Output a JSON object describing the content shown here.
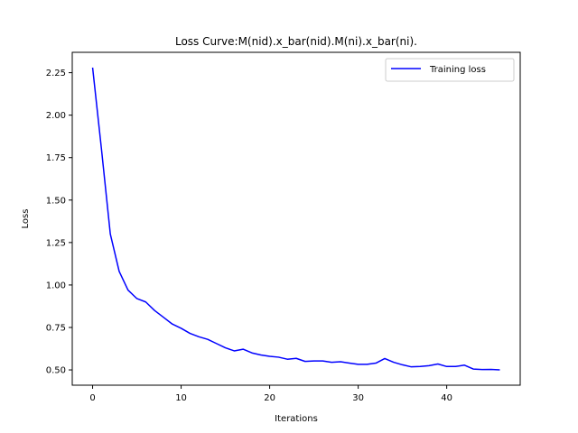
{
  "chart_data": {
    "type": "line",
    "title": "Loss Curve:M(nid).x_bar(nid).M(ni).x_bar(ni).",
    "xlabel": "Iterations",
    "ylabel": "Loss",
    "xlim": [
      -2.3,
      48.3
    ],
    "ylim": [
      0.41,
      2.37
    ],
    "xticks": [
      0,
      10,
      20,
      30,
      40
    ],
    "yticks": [
      0.5,
      0.75,
      1.0,
      1.25,
      1.5,
      1.75,
      2.0,
      2.25
    ],
    "ytick_labels": [
      "0.50",
      "0.75",
      "1.00",
      "1.25",
      "1.50",
      "1.75",
      "2.00",
      "2.25"
    ],
    "grid": false,
    "legend_position": "top-right",
    "series": [
      {
        "name": "Training loss",
        "color": "#0000ff",
        "x": [
          0,
          1,
          2,
          3,
          4,
          5,
          6,
          7,
          8,
          9,
          10,
          11,
          12,
          13,
          14,
          15,
          16,
          17,
          18,
          19,
          20,
          21,
          22,
          23,
          24,
          25,
          26,
          27,
          28,
          29,
          30,
          31,
          32,
          33,
          34,
          35,
          36,
          37,
          38,
          39,
          40,
          41,
          42,
          43,
          44,
          45,
          46
        ],
        "y": [
          2.28,
          1.8,
          1.3,
          1.08,
          0.97,
          0.92,
          0.9,
          0.85,
          0.81,
          0.77,
          0.745,
          0.715,
          0.695,
          0.68,
          0.655,
          0.63,
          0.612,
          0.622,
          0.6,
          0.588,
          0.58,
          0.575,
          0.563,
          0.568,
          0.55,
          0.553,
          0.553,
          0.545,
          0.548,
          0.54,
          0.533,
          0.533,
          0.54,
          0.567,
          0.545,
          0.53,
          0.518,
          0.52,
          0.525,
          0.535,
          0.52,
          0.52,
          0.528,
          0.505,
          0.502,
          0.503,
          0.5
        ]
      }
    ]
  }
}
